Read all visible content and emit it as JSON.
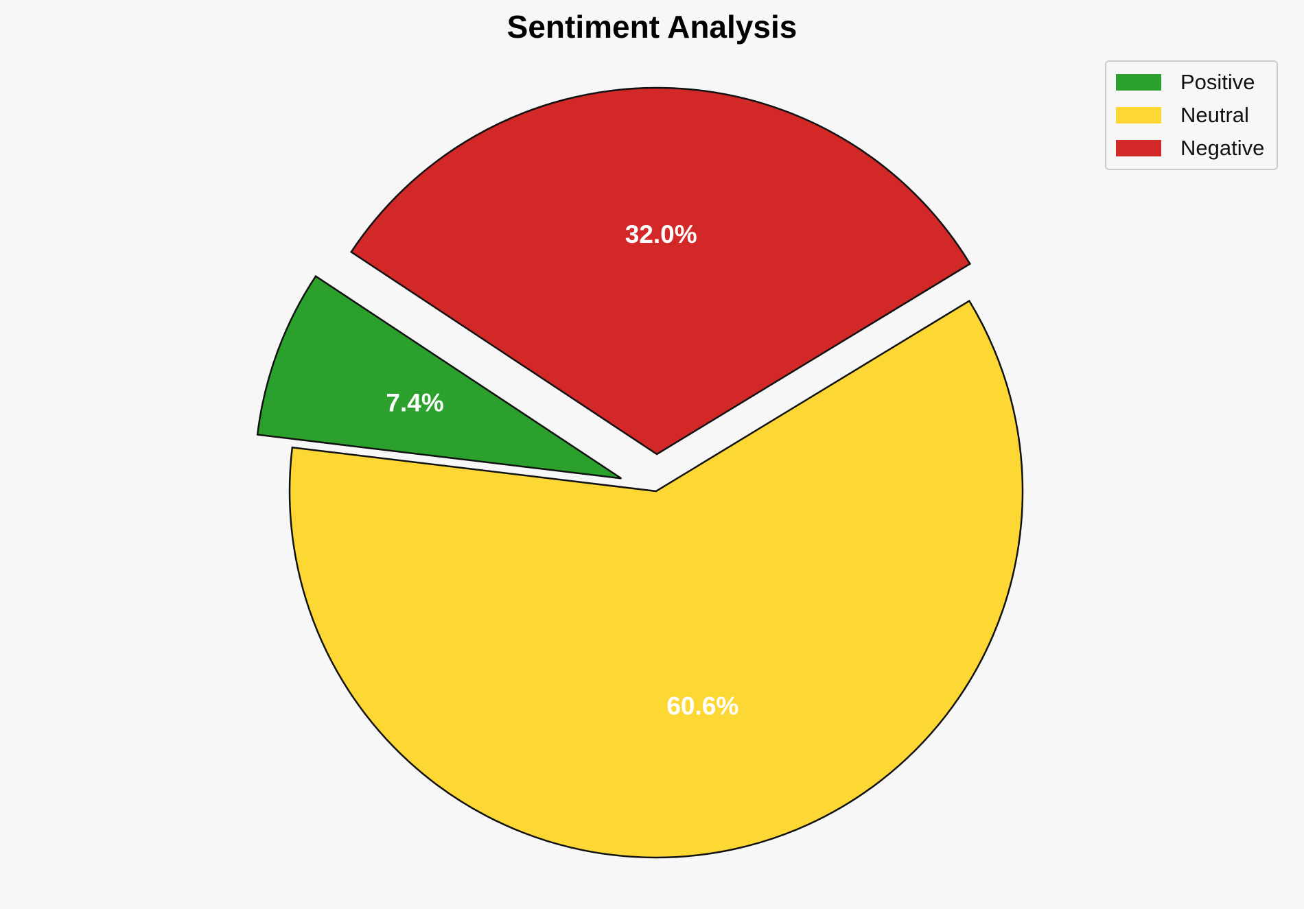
{
  "chart_data": {
    "type": "pie",
    "title": "Sentiment Analysis",
    "categories": [
      "Positive",
      "Neutral",
      "Negative"
    ],
    "values": [
      7.4,
      60.6,
      32.0
    ],
    "value_labels": [
      "7.4%",
      "60.6%",
      "32.0%"
    ],
    "colors": [
      "#2ca02c",
      "#fdd835",
      "#d32828"
    ],
    "exploded": [
      true,
      false,
      true
    ],
    "legend_position": "top-right"
  }
}
